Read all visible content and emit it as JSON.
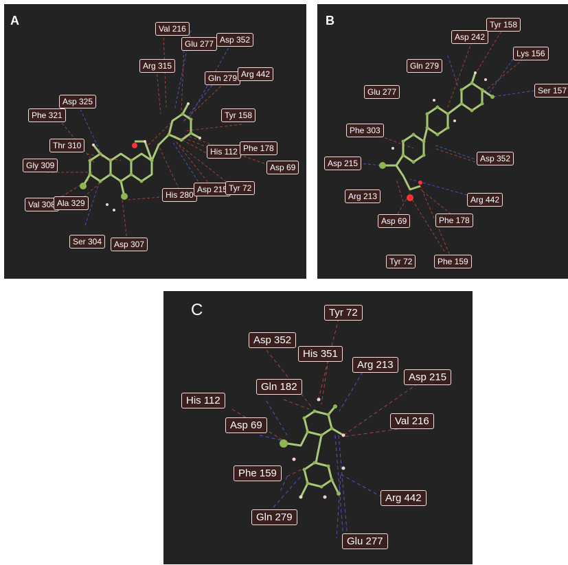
{
  "panels": [
    {
      "id": "A",
      "letter": "A",
      "residues": [
        "Val 216",
        "Glu 277",
        "Asp 352",
        "Arg 315",
        "Gln 279",
        "Arg 442",
        "Asp 325",
        "Phe 321",
        "Tyr 158",
        "Thr 310",
        "His 112",
        "Phe 178",
        "Gly 309",
        "Asp 69",
        "His 280",
        "Asp 215",
        "Tyr 72",
        "Val 308",
        "Ala 329",
        "Ser 304",
        "Asp 307"
      ]
    },
    {
      "id": "B",
      "letter": "B",
      "residues": [
        "Tyr 158",
        "Asp 242",
        "Lys 156",
        "Gln 279",
        "Ser 157",
        "Glu 277",
        "Phe 303",
        "Asp 352",
        "Asp 215",
        "Arg 213",
        "Arg 442",
        "Asp 69",
        "Phe 178",
        "Tyr 72",
        "Phe 159"
      ]
    },
    {
      "id": "C",
      "letter": "C",
      "residues": [
        "Tyr 72",
        "Asp 352",
        "His 351",
        "Arg 213",
        "Asp 215",
        "Gln 182",
        "His 112",
        "Val 216",
        "Asp 69",
        "Phe 159",
        "Arg 442",
        "Gln 279",
        "Glu 277"
      ]
    }
  ],
  "colors": {
    "panel_background": "#232323",
    "label_background": "#3a1f1f",
    "label_border": "#f4dede",
    "hydrophobic_line": "#b84848",
    "hbond_line": "#5a5ad2",
    "ligand_bond": "#aac87a",
    "ligand_atom": "#8fb650",
    "oxygen_atom": "#ff3030"
  }
}
